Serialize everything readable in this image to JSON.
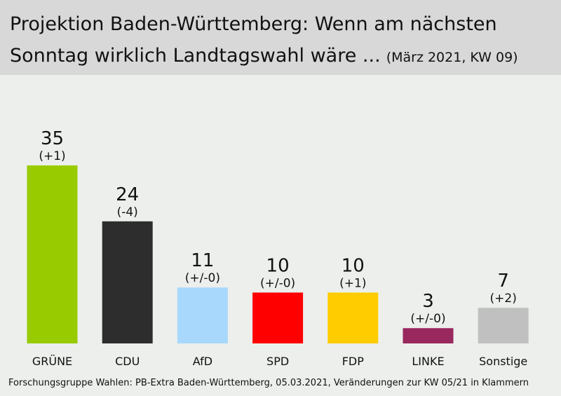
{
  "title": {
    "line1": "Projektion Baden-Württemberg: Wenn am nächsten",
    "line2": "Sonntag wirklich Landtagswahl wäre ...",
    "subtitle": "(März 2021, KW 09)"
  },
  "source": "Forschungsgruppe Wahlen: PB-Extra Baden-Württemberg, 05.03.2021, Veränderungen zur KW 05/21 in Klammern",
  "chart_data": {
    "type": "bar",
    "title": "Projektion Baden-Württemberg: Wenn am nächsten Sonntag wirklich Landtagswahl wäre ...",
    "subtitle": "(März 2021, KW 09)",
    "categories": [
      "GRÜNE",
      "CDU",
      "AfD",
      "SPD",
      "FDP",
      "LINKE",
      "Sonstige"
    ],
    "values": [
      35,
      24,
      11,
      10,
      10,
      3,
      7
    ],
    "value_labels": [
      "35",
      "24",
      "11",
      "10",
      "10",
      "3",
      "7"
    ],
    "changes": [
      "(+1)",
      "(-4)",
      "(+/-0)",
      "(+/-0)",
      "(+1)",
      "(+/-0)",
      "(+2)"
    ],
    "colors": [
      "#99cc00",
      "#2d2d2d",
      "#a8d8fb",
      "#ff0000",
      "#ffcc00",
      "#99285e",
      "#c0c0c0"
    ],
    "xlabel": "",
    "ylabel": "",
    "ylim": [
      0,
      35
    ],
    "grid": false,
    "legend": "none"
  }
}
